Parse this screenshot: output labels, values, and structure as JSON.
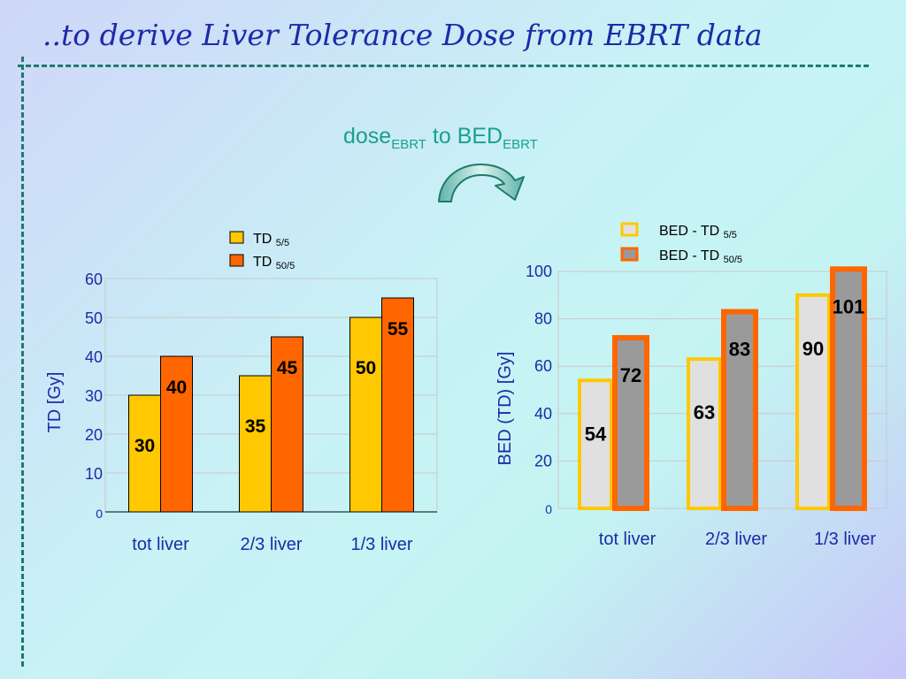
{
  "slide": {
    "title": "..to derive Liver Tolerance Dose from EBRT data",
    "subtitle": {
      "a": "dose",
      "a_sub": "EBRT",
      "b": " to BED",
      "b_sub": "EBRT"
    }
  },
  "colors": {
    "title": "#1c2ba8",
    "axis_text": "#1c2ba8",
    "dash": "#1f7a6a",
    "subtitle": "#1aa090",
    "td55": "#ffc800",
    "td505": "#ff6600",
    "bed_fill_5": "#e0e0e0",
    "bed_fill_50": "#9a9a9a"
  },
  "icons": [
    "curved-arrow-icon"
  ],
  "chart_data": [
    {
      "type": "bar",
      "categories": [
        "tot liver",
        "2/3 liver",
        "1/3 liver"
      ],
      "series": [
        {
          "name": "TD",
          "name_sub": "5/5",
          "values": [
            30,
            35,
            50
          ],
          "labels": [
            "30",
            "35",
            "50"
          ]
        },
        {
          "name": "TD",
          "name_sub": "50/5",
          "values": [
            40,
            45,
            55
          ],
          "labels": [
            "40",
            "45",
            "55"
          ]
        }
      ],
      "ylabel": "TD  [Gy]",
      "ylim": [
        0,
        60
      ],
      "yticks": [
        "0",
        "10",
        "20",
        "30",
        "40",
        "50",
        "60"
      ],
      "grid": true,
      "legend": "top"
    },
    {
      "type": "bar",
      "categories": [
        "tot liver",
        "2/3 liver",
        "1/3 liver"
      ],
      "series": [
        {
          "name": "BED - TD",
          "name_sub": "5/5",
          "values": [
            54,
            63,
            90
          ],
          "labels": [
            "54",
            "63",
            "90"
          ]
        },
        {
          "name": "BED - TD",
          "name_sub": "50/5",
          "values": [
            72,
            83,
            101
          ],
          "labels": [
            "72",
            "83",
            "101"
          ]
        }
      ],
      "ylabel": "BED (TD)  [Gy]",
      "ylim": [
        0,
        100
      ],
      "yticks": [
        "0",
        "20",
        "40",
        "60",
        "80",
        "100"
      ],
      "grid": true,
      "legend": "top"
    }
  ]
}
